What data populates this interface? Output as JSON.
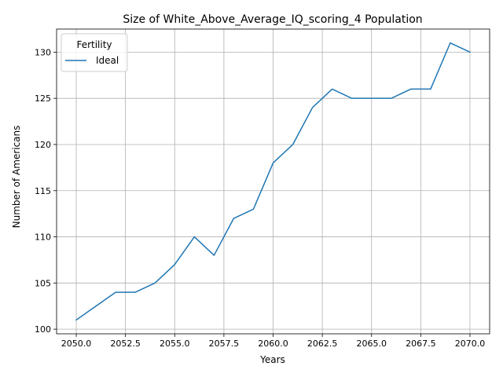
{
  "chart_data": {
    "type": "line",
    "title": "Size of White_Above_Average_IQ_scoring_4 Population",
    "xlabel": "Years",
    "ylabel": "Number of Americans",
    "xlim": [
      2049,
      2071
    ],
    "ylim": [
      99.5,
      132.5
    ],
    "xticks": [
      2050.0,
      2052.5,
      2055.0,
      2057.5,
      2060.0,
      2062.5,
      2065.0,
      2067.5,
      2070.0
    ],
    "xtick_labels": [
      "2050.0",
      "2052.5",
      "2055.0",
      "2057.5",
      "2060.0",
      "2062.5",
      "2065.0",
      "2067.5",
      "2070.0"
    ],
    "yticks": [
      100,
      105,
      110,
      115,
      120,
      125,
      130
    ],
    "ytick_labels": [
      "100",
      "105",
      "110",
      "115",
      "120",
      "125",
      "130"
    ],
    "grid": true,
    "legend": {
      "title": "Fertility",
      "placement": "top-left"
    },
    "x": [
      2050,
      2051,
      2052,
      2053,
      2054,
      2055,
      2056,
      2057,
      2058,
      2059,
      2060,
      2061,
      2062,
      2063,
      2064,
      2065,
      2066,
      2067,
      2068,
      2069,
      2070
    ],
    "series": [
      {
        "name": "Ideal",
        "color": "#1f77b4",
        "values": [
          101,
          102.5,
          104,
          104,
          105,
          107,
          110,
          108,
          112,
          113,
          118,
          120,
          124,
          126,
          125,
          125,
          125,
          126,
          126,
          131,
          130
        ]
      }
    ]
  }
}
